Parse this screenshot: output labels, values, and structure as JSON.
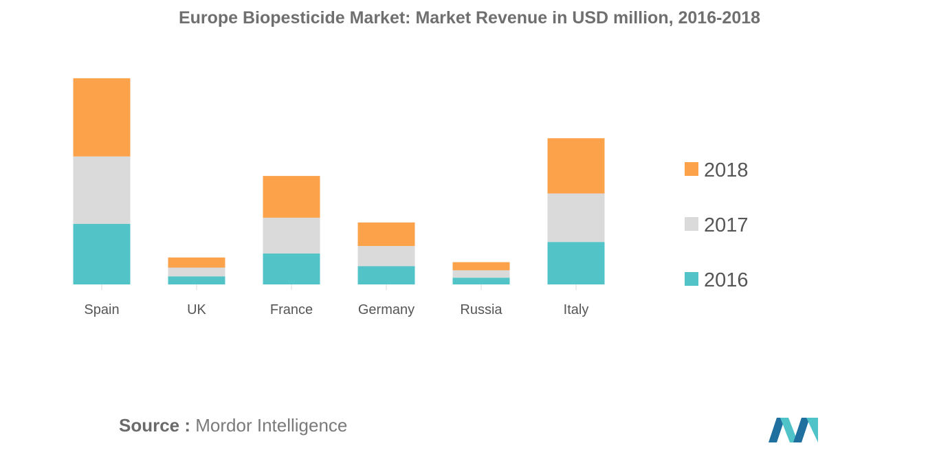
{
  "chart_data": {
    "type": "bar",
    "stacked": true,
    "title": "Europe Biopesticide Market: Market Revenue in USD million, 2016-2018",
    "xlabel": "",
    "ylabel": "",
    "categories": [
      "Spain",
      "UK",
      "France",
      "Germany",
      "Russia",
      "Italy"
    ],
    "series": [
      {
        "name": "2016",
        "color": "#52c4c8",
        "values": [
          90,
          12,
          46,
          27,
          10,
          63
        ]
      },
      {
        "name": "2017",
        "color": "#dadada",
        "values": [
          100,
          13,
          53,
          30,
          11,
          72
        ]
      },
      {
        "name": "2018",
        "color": "#fba24b",
        "values": [
          116,
          15,
          62,
          35,
          12,
          82
        ]
      }
    ],
    "legend_order": [
      "2018",
      "2017",
      "2016"
    ],
    "ylim": [
      0,
      310
    ],
    "y_axis_visible": false,
    "grid": false,
    "legend_position": "right"
  },
  "source": {
    "label": "Source :",
    "text": "Mordor Intelligence"
  },
  "logo": {
    "name": "mordor-intelligence-logo",
    "colors": [
      "#1f6f9f",
      "#4fc3c8"
    ]
  }
}
